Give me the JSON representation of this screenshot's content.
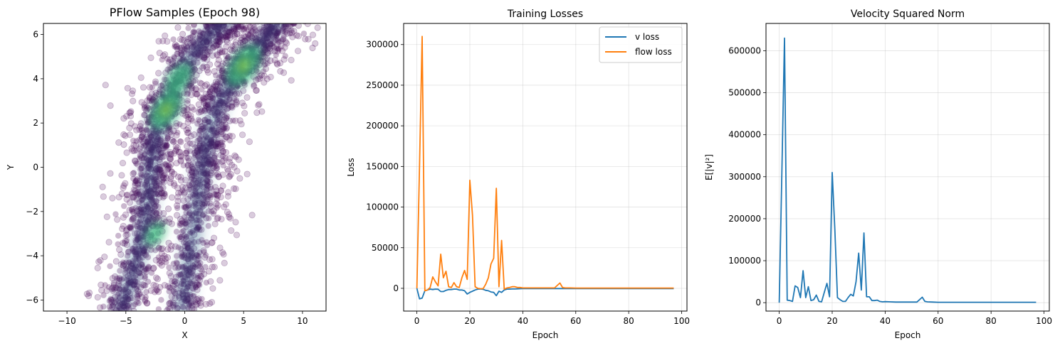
{
  "chart_data": [
    {
      "type": "scatter",
      "title": "PFlow Samples (Epoch 98)",
      "xlabel": "X",
      "ylabel": "Y",
      "xlim": [
        -12,
        12
      ],
      "ylim": [
        -6.5,
        6.5
      ],
      "xticks": [
        -10,
        -5,
        0,
        5,
        10
      ],
      "yticks": [
        -6,
        -4,
        -2,
        0,
        2,
        4,
        6
      ],
      "xtick_labels": [
        "−10",
        "−5",
        "0",
        "5",
        "10"
      ],
      "ytick_labels": [
        "−6",
        "−4",
        "−2",
        "0",
        "2",
        "4",
        "6"
      ],
      "grid": false,
      "colors": {
        "points": "#440154",
        "density_mid": "#31688e",
        "density_high": "#35b779",
        "density_peak": "#b5de2b"
      },
      "density": {
        "bands": [
          {
            "points": [
              [
                -5.5,
                -6.5
              ],
              [
                -4.5,
                -5.0
              ],
              [
                -3.5,
                -3.0
              ],
              [
                -3.0,
                -1.0
              ],
              [
                -2.8,
                0.5
              ],
              [
                -2.2,
                2.0
              ],
              [
                -1.0,
                3.5
              ],
              [
                0.5,
                5.0
              ],
              [
                2.5,
                6.2
              ],
              [
                4.0,
                6.8
              ]
            ],
            "spread": 1.6
          },
          {
            "points": [
              [
                -0.3,
                -6.5
              ],
              [
                0.3,
                -4.5
              ],
              [
                1.0,
                -2.0
              ],
              [
                1.5,
                0.0
              ],
              [
                2.0,
                1.5
              ],
              [
                3.0,
                3.0
              ],
              [
                4.5,
                4.3
              ],
              [
                6.0,
                5.3
              ],
              [
                7.5,
                6.3
              ],
              [
                8.5,
                7.0
              ]
            ],
            "spread": 1.7
          }
        ],
        "peaks": [
          {
            "center": [
              5.0,
              4.6
            ],
            "strength": 1.0
          },
          {
            "center": [
              -1.6,
              2.6
            ],
            "strength": 0.9
          },
          {
            "center": [
              -0.5,
              4.0
            ],
            "strength": 0.7
          },
          {
            "center": [
              -2.5,
              -3.0
            ],
            "strength": 0.5
          }
        ]
      }
    },
    {
      "type": "line",
      "title": "Training Losses",
      "xlabel": "Epoch",
      "ylabel": "Loss",
      "xlim": [
        -5,
        102
      ],
      "ylim": [
        -28000,
        326000
      ],
      "xticks": [
        0,
        20,
        40,
        60,
        80,
        100
      ],
      "yticks": [
        0,
        50000,
        100000,
        150000,
        200000,
        250000,
        300000
      ],
      "xtick_labels": [
        "0",
        "20",
        "40",
        "60",
        "80",
        "100"
      ],
      "ytick_labels": [
        "0",
        "50000",
        "100000",
        "150000",
        "200000",
        "250000",
        "300000"
      ],
      "grid": true,
      "legend_position": "top-right",
      "series": [
        {
          "name": "v loss",
          "color": "#1f77b4",
          "x": [
            0,
            1,
            2,
            3,
            4,
            5,
            6,
            7,
            8,
            9,
            10,
            11,
            12,
            13,
            14,
            15,
            16,
            17,
            18,
            19,
            20,
            21,
            22,
            23,
            24,
            25,
            26,
            27,
            28,
            29,
            30,
            31,
            32,
            33,
            34,
            35,
            36,
            37,
            38,
            39,
            40,
            42,
            44,
            46,
            48,
            50,
            52,
            54,
            56,
            58,
            60,
            65,
            70,
            75,
            80,
            85,
            90,
            97
          ],
          "y": [
            0,
            -13000,
            -12000,
            -3000,
            -2000,
            -1000,
            -1500,
            -1000,
            -1200,
            -4000,
            -4000,
            -2500,
            -1500,
            -1500,
            -1000,
            -1000,
            -2000,
            -2000,
            -3000,
            -7000,
            -5000,
            -3500,
            -2000,
            -1000,
            -800,
            -1200,
            -2500,
            -3000,
            -4500,
            -5000,
            -9000,
            -3500,
            -5000,
            -2000,
            -1000,
            -1000,
            -800,
            -800,
            -600,
            -500,
            -400,
            -300,
            -300,
            -300,
            -300,
            -300,
            -300,
            -300,
            -300,
            -300,
            -300,
            -300,
            -300,
            -300,
            -300,
            -300,
            -300,
            -300
          ]
        },
        {
          "name": "flow loss",
          "color": "#ff7f0e",
          "x": [
            0,
            1,
            2,
            3,
            4,
            5,
            6,
            7,
            8,
            9,
            10,
            11,
            12,
            13,
            14,
            15,
            16,
            17,
            18,
            19,
            20,
            21,
            22,
            23,
            24,
            25,
            26,
            27,
            28,
            29,
            30,
            31,
            32,
            33,
            34,
            35,
            36,
            37,
            38,
            39,
            40,
            42,
            44,
            46,
            48,
            50,
            52,
            54,
            55,
            56,
            58,
            60,
            65,
            70,
            75,
            80,
            85,
            90,
            97
          ],
          "y": [
            0,
            150000,
            310000,
            -3000,
            -2000,
            1000,
            14000,
            8000,
            3000,
            42000,
            13000,
            21000,
            2000,
            1000,
            7000,
            2000,
            1000,
            13000,
            22000,
            11000,
            133000,
            90000,
            2000,
            0,
            -500,
            -500,
            5000,
            13000,
            30000,
            37000,
            123000,
            2000,
            59000,
            -1000,
            500,
            1000,
            2000,
            2000,
            1000,
            1000,
            500,
            500,
            500,
            500,
            500,
            500,
            500,
            6500,
            1000,
            500,
            500,
            300,
            300,
            300,
            300,
            300,
            300,
            300,
            300
          ]
        }
      ]
    },
    {
      "type": "line",
      "title": "Velocity Squared Norm",
      "xlabel": "Epoch",
      "ylabel": "E[|v|²]",
      "xlim": [
        -5,
        102
      ],
      "ylim": [
        -20000,
        665000
      ],
      "xticks": [
        0,
        20,
        40,
        60,
        80,
        100
      ],
      "yticks": [
        0,
        100000,
        200000,
        300000,
        400000,
        500000,
        600000
      ],
      "xtick_labels": [
        "0",
        "20",
        "40",
        "60",
        "80",
        "100"
      ],
      "ytick_labels": [
        "0",
        "100000",
        "200000",
        "300000",
        "400000",
        "500000",
        "600000"
      ],
      "grid": true,
      "series": [
        {
          "color": "#1f77b4",
          "x": [
            0,
            1,
            2,
            3,
            4,
            5,
            6,
            7,
            8,
            9,
            10,
            11,
            12,
            13,
            14,
            15,
            16,
            17,
            18,
            19,
            20,
            21,
            22,
            23,
            24,
            25,
            26,
            27,
            28,
            29,
            30,
            31,
            32,
            33,
            34,
            35,
            36,
            37,
            38,
            39,
            40,
            42,
            44,
            46,
            48,
            50,
            52,
            54,
            55,
            56,
            58,
            60,
            65,
            70,
            75,
            80,
            85,
            90,
            97
          ],
          "y": [
            0,
            310000,
            630000,
            6000,
            5000,
            3000,
            40000,
            36000,
            12000,
            76000,
            12000,
            38000,
            5000,
            7000,
            18000,
            3000,
            2000,
            24000,
            46000,
            14000,
            310000,
            175000,
            12000,
            7000,
            3000,
            3000,
            12000,
            20000,
            16000,
            50000,
            118000,
            30000,
            166000,
            14000,
            14000,
            5000,
            5000,
            6000,
            3000,
            2000,
            2500,
            2000,
            1500,
            1500,
            1500,
            1500,
            1500,
            13000,
            3000,
            2000,
            1500,
            1000,
            1000,
            1000,
            1000,
            1000,
            1000,
            1000,
            1000
          ]
        }
      ]
    }
  ]
}
